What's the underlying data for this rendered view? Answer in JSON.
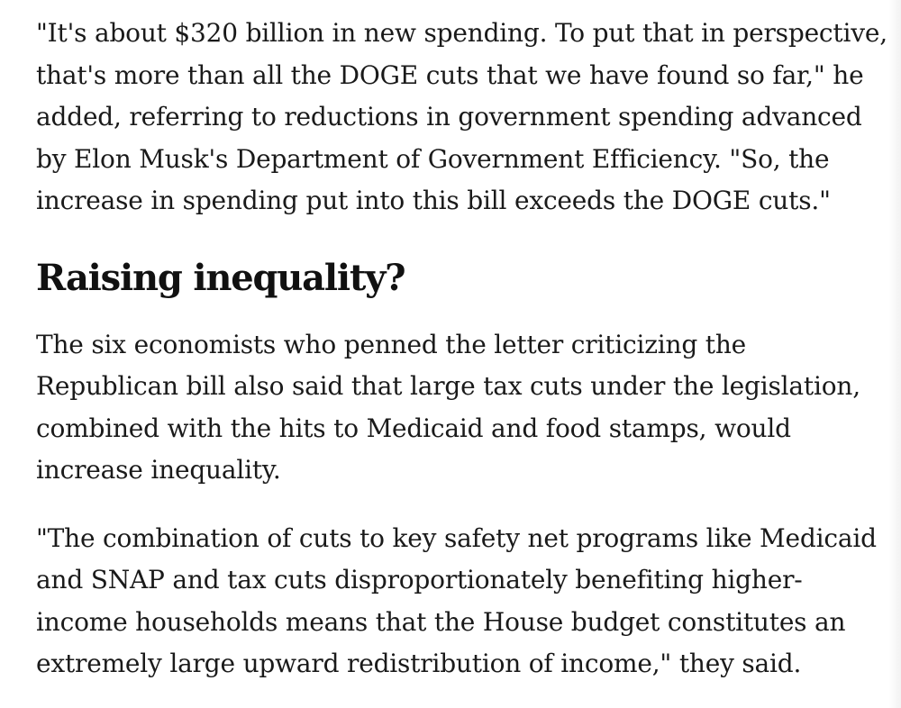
{
  "article": {
    "paragraphs_top": [
      "\"It's about $320 billion in new spending. To put that in perspective, that's more than all the DOGE cuts that we have found so far,\" he added, referring to reductions in government spending advanced by Elon Musk's Department of Government Efficiency. \"So, the increase in spending put into this bill exceeds the DOGE cuts.\""
    ],
    "heading": "Raising inequality?",
    "paragraph_2": "The six economists who penned the letter criticizing the Republican bill also said that large tax cuts under the legislation, combined with the hits to Medicaid and food stamps, would increase inequality.",
    "paragraph_3": "\"The combination of cuts to key safety net programs like Medicaid and SNAP and tax cuts disproportionately benefiting higher-income households means that the House budget constitutes an extremely large upward redistribution of income,\" they said."
  }
}
